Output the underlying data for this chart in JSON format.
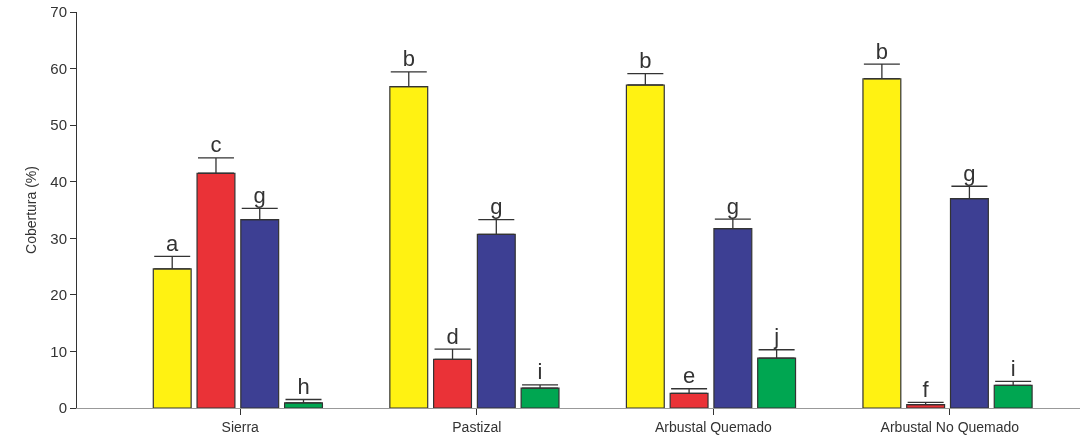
{
  "chart_data": {
    "type": "bar",
    "ylabel": "Cobertura (%)",
    "categories": [
      "Sierra",
      "Pastizal",
      "Arbustal Quemado",
      "Arbustal No Quemado"
    ],
    "series": [
      {
        "color": "#fff212",
        "values": [
          24.6,
          56.8,
          57.1,
          58.2
        ],
        "errors": [
          [
            24.6,
            26.8
          ],
          [
            56.8,
            59.4
          ],
          [
            57.1,
            59.1
          ],
          [
            58.2,
            60.8
          ]
        ],
        "value_labels": [
          "a",
          "b",
          "b",
          "b"
        ]
      },
      {
        "color": "#ea3237",
        "values": [
          41.5,
          8.6,
          2.6,
          0.6
        ],
        "errors": [
          [
            41.5,
            44.2
          ],
          [
            8.6,
            10.4
          ],
          [
            2.6,
            3.4
          ],
          [
            0.6,
            1.0
          ]
        ],
        "value_labels": [
          "c",
          "d",
          "e",
          "f"
        ]
      },
      {
        "color": "#3d3f93",
        "values": [
          33.3,
          30.7,
          31.7,
          37.0
        ],
        "errors": [
          [
            33.3,
            35.3
          ],
          [
            30.7,
            33.3
          ],
          [
            31.7,
            33.4
          ],
          [
            37.0,
            39.2
          ]
        ],
        "value_labels": [
          "g",
          "g",
          "g",
          "g"
        ]
      },
      {
        "color": "#00a651",
        "values": [
          0.9,
          3.5,
          8.8,
          4.0
        ],
        "errors": [
          [
            0.9,
            1.5
          ],
          [
            3.5,
            4.1
          ],
          [
            8.8,
            10.3
          ],
          [
            4.0,
            4.7
          ]
        ],
        "value_labels": [
          "h",
          "i",
          "j",
          "i"
        ]
      }
    ],
    "ylim": [
      0,
      70
    ],
    "yticks": [
      0,
      10,
      20,
      30,
      40,
      50,
      60,
      70
    ],
    "grid": false
  }
}
